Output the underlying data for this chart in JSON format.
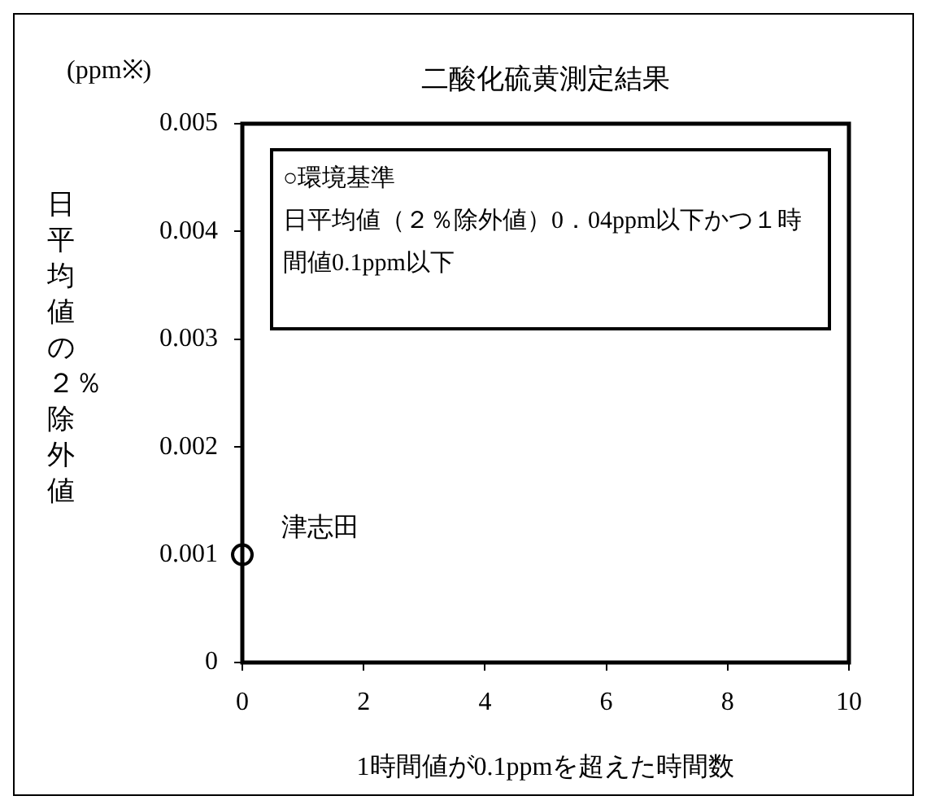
{
  "chart_data": {
    "type": "scatter",
    "title": "二酸化硫黄測定結果",
    "xlabel": "1時間値が0.1ppmを超えた時間数",
    "ylabel": "日平均値の２％除外値",
    "annotations": [
      "(ppm※)",
      "○環境基準",
      "日平均値（２％除外値）0．04ppm以下かつ１時間値0.1ppm以下"
    ],
    "series": [
      {
        "name": "津志田",
        "color": "#000000",
        "x": [
          0
        ],
        "values": [
          0.001
        ]
      }
    ],
    "xlim": [
      0,
      10
    ],
    "xticks": [
      0,
      2,
      4,
      6,
      8,
      10
    ],
    "ylim": [
      0,
      0.005
    ],
    "yticks": [
      0,
      0.001,
      0.002,
      0.003,
      0.004,
      0.005
    ],
    "grid": false,
    "legend": false,
    "marker": "circle"
  }
}
